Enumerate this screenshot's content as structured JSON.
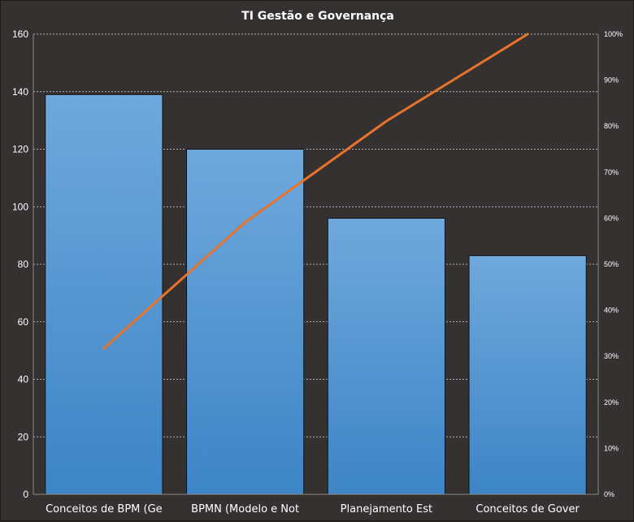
{
  "chart_data": {
    "type": "bar",
    "title": "TI Gestão  e Governança",
    "categories": [
      "Conceitos de BPM (Ge",
      "BPMN (Modelo e Not",
      "Planejamento Est",
      "Conceitos de Gover"
    ],
    "series": [
      {
        "values": [
          139,
          120,
          96,
          83
        ]
      },
      {
        "values": [
          31.7,
          59.1,
          81.1,
          100
        ]
      }
    ],
    "ylim": [
      0,
      160
    ],
    "y_ticks": [
      "0",
      "20",
      "40",
      "60",
      "80",
      "100",
      "120",
      "140",
      "160"
    ],
    "y2lim": [
      0,
      100
    ],
    "y2_ticks": [
      "0%",
      "10%",
      "20%",
      "30%",
      "40%",
      "50%",
      "60%",
      "70%",
      "80%",
      "90%",
      "100%"
    ],
    "xlabel": "",
    "ylabel": "",
    "grid": true,
    "colors": {
      "bar_top": "#6fa8dc",
      "bar_bottom": "#3d85c6",
      "line": "#e8732a",
      "grid": "#d8d8d8",
      "background": "#343130"
    }
  }
}
